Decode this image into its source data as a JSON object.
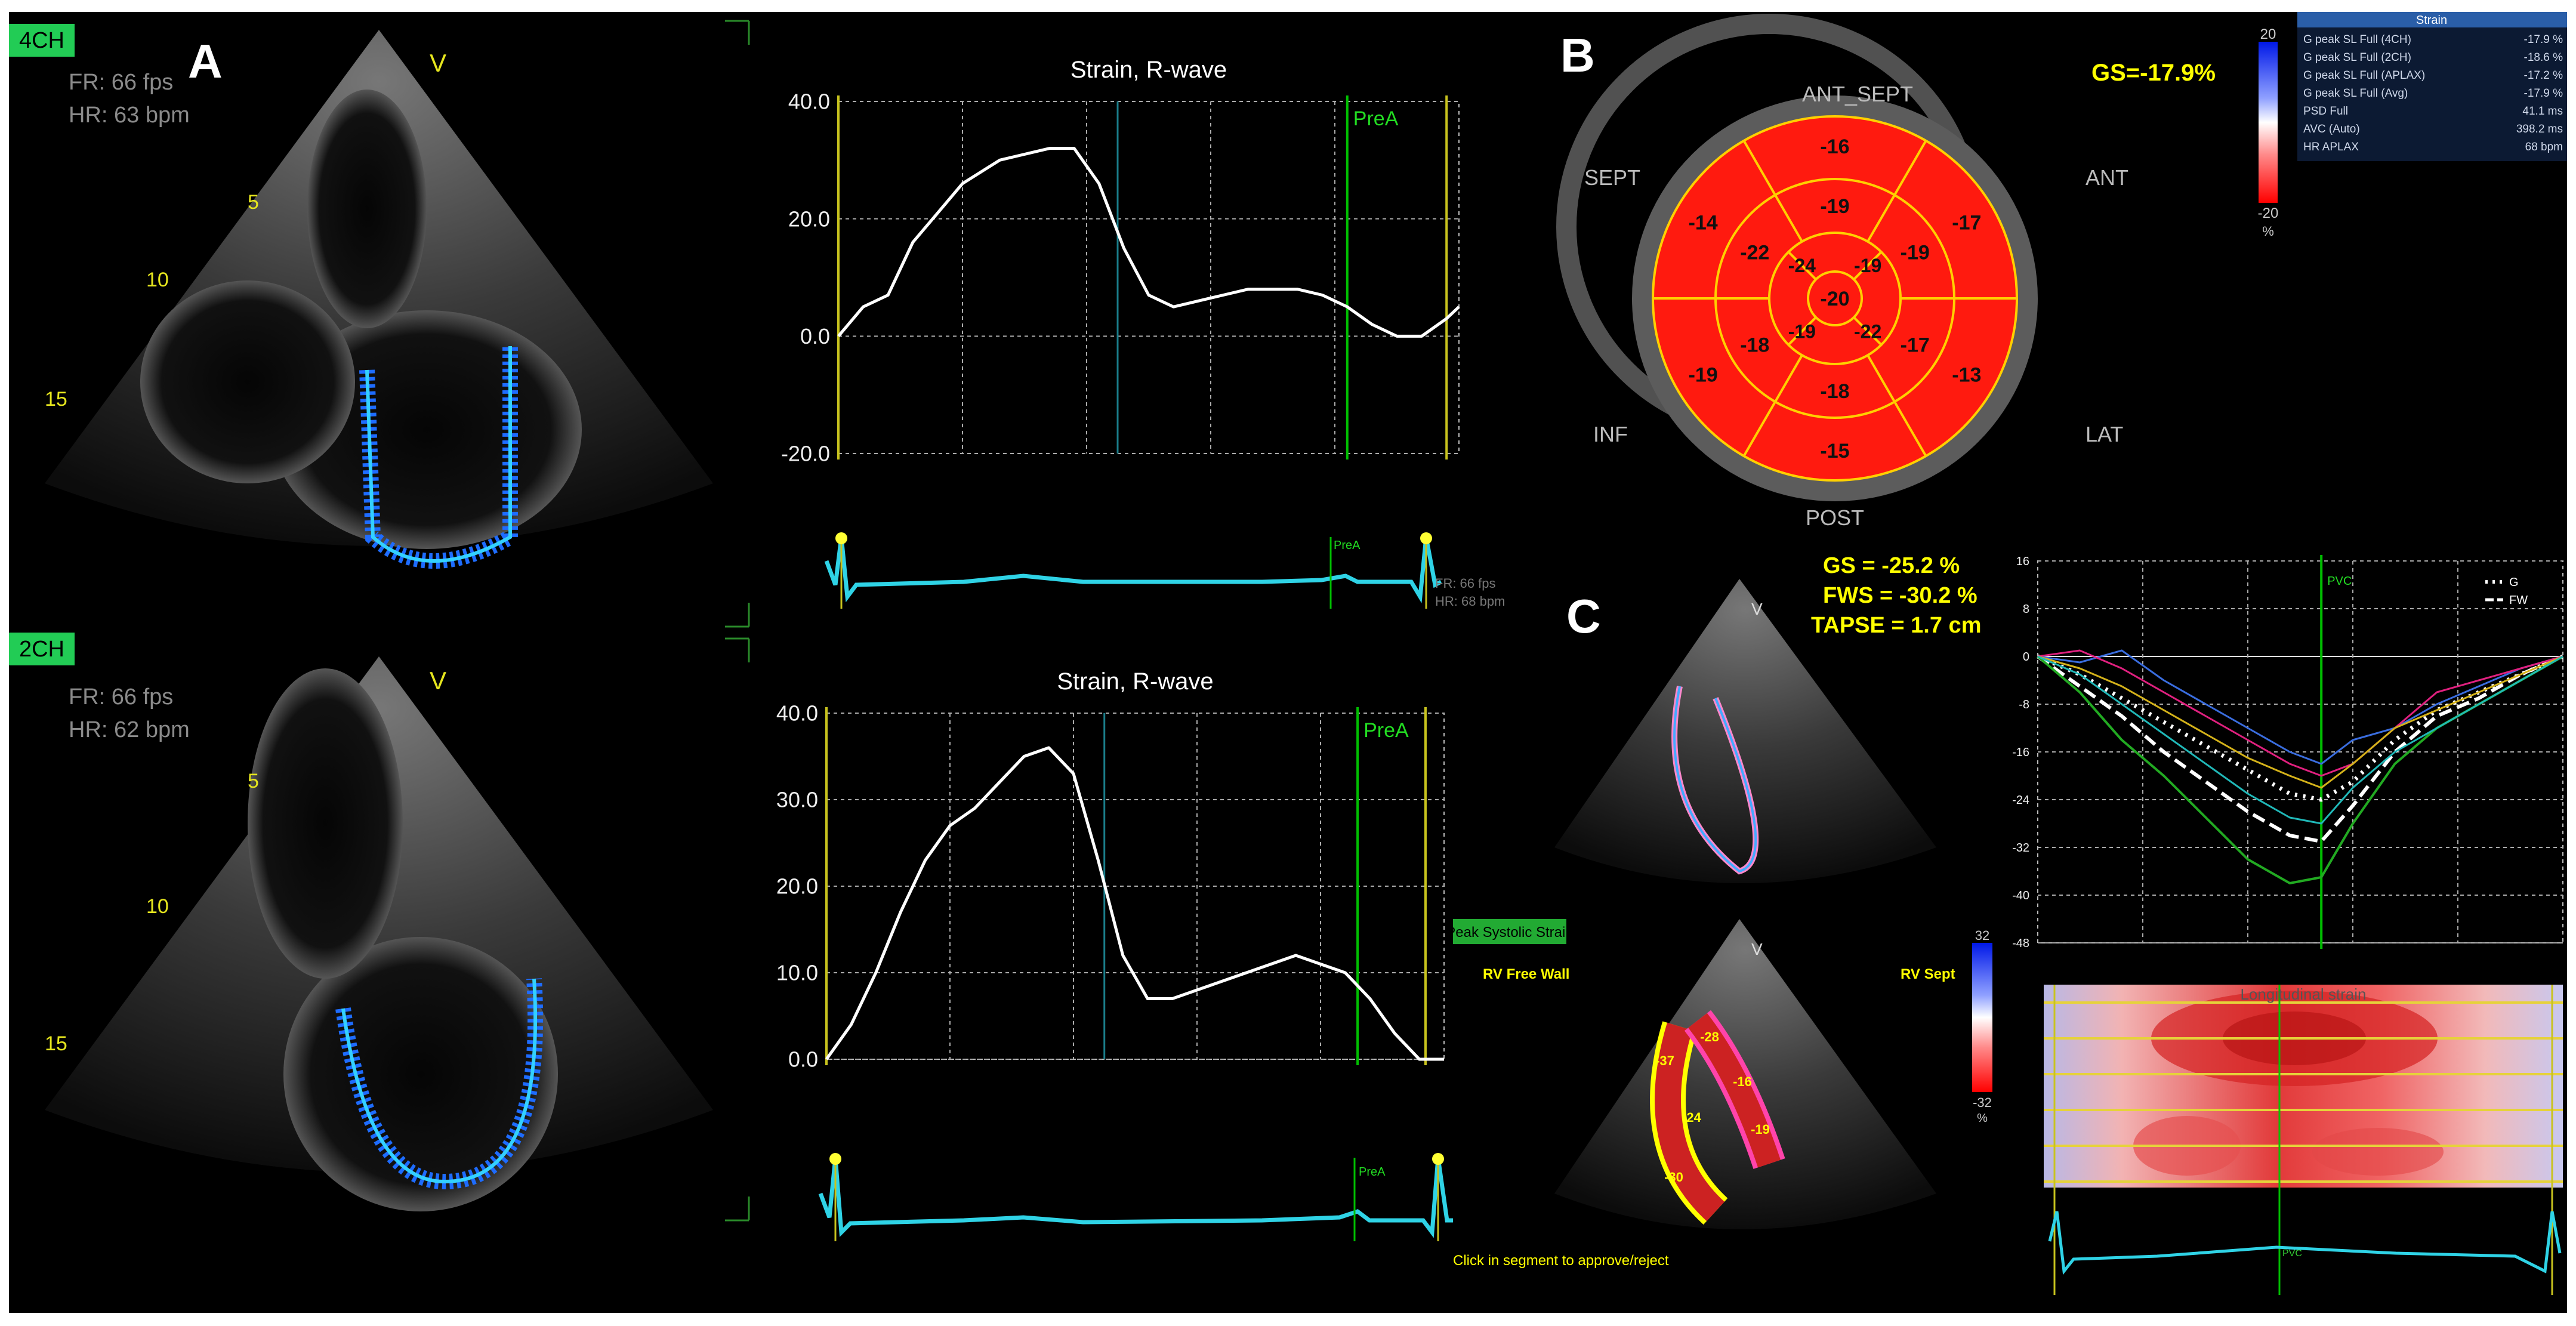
{
  "panel_letters": {
    "a": "A",
    "b": "B",
    "c": "C"
  },
  "echo_4ch": {
    "view_tag": "4CH",
    "fr": "FR: 66 fps",
    "hr": "HR: 63 bpm",
    "marker": "V",
    "depth": [
      "5",
      "10",
      "15"
    ]
  },
  "echo_2ch": {
    "view_tag": "2CH",
    "fr": "FR: 66 fps",
    "hr": "HR: 62 bpm",
    "marker": "V",
    "depth": [
      "5",
      "10",
      "15"
    ]
  },
  "ecg_mini_text": {
    "fr": "FR: 66 fps",
    "hr": "HR: 68 bpm"
  },
  "peak_systolic_label": "Peak Systolic Strain",
  "colors": {
    "curve": "#ffffff",
    "axis": "#c8c31e",
    "marker": "#00c000",
    "ecg": "#2fd3e6",
    "bullseye": "#ff1a0f",
    "yellow": "#ffff00"
  },
  "chart_data": [
    {
      "type": "line",
      "title": "Strain, R-wave",
      "ylim": [
        -20,
        40
      ],
      "yticks": [
        "40.0",
        "20.0",
        "0.0",
        "-20.0"
      ],
      "marker_label": "PreA",
      "x": [
        0,
        4,
        8,
        12,
        16,
        20,
        26,
        30,
        34,
        38,
        42,
        46,
        50,
        54,
        58,
        62,
        66,
        70,
        74,
        78,
        82,
        86,
        90,
        94,
        98,
        100
      ],
      "y": [
        0,
        5,
        7,
        16,
        21,
        26,
        30,
        31,
        32,
        32,
        26,
        15,
        7,
        5,
        6,
        7,
        8,
        8,
        8,
        7,
        5,
        2,
        0,
        0,
        3,
        5
      ]
    },
    {
      "type": "line",
      "title": "Strain, R-wave",
      "ylim": [
        0,
        40
      ],
      "yticks": [
        "40.0",
        "30.0",
        "20.0",
        "10.0",
        "0.0"
      ],
      "marker_label": "PreA",
      "x": [
        0,
        4,
        8,
        12,
        16,
        20,
        24,
        28,
        32,
        36,
        40,
        44,
        48,
        52,
        56,
        60,
        64,
        68,
        72,
        76,
        80,
        84,
        88,
        92,
        96,
        100
      ],
      "y": [
        0,
        4,
        10,
        17,
        23,
        27,
        29,
        32,
        35,
        36,
        33,
        23,
        12,
        7,
        7,
        8,
        9,
        10,
        11,
        12,
        11,
        10,
        7,
        3,
        0,
        0
      ]
    },
    {
      "type": "line",
      "title": "",
      "ylim": [
        -48,
        16
      ],
      "yticks": [
        "16",
        "8",
        "0",
        "-8",
        "-16",
        "-24",
        "-32",
        "-40",
        "-48"
      ],
      "marker_label": "PVC",
      "legend": [
        "G",
        "FW"
      ],
      "x": [
        0,
        8,
        16,
        24,
        32,
        40,
        48,
        54,
        60,
        68,
        76,
        84,
        92,
        100
      ],
      "series": [
        {
          "name": "G",
          "values": [
            0,
            -3,
            -7,
            -11,
            -15,
            -19,
            -23,
            -24,
            -21,
            -14,
            -9,
            -6,
            -3,
            0
          ]
        },
        {
          "name": "FW",
          "values": [
            0,
            -5,
            -10,
            -16,
            -21,
            -26,
            -30,
            -31,
            -25,
            -16,
            -10,
            -7,
            -3,
            0
          ]
        },
        {
          "name": "seg-green",
          "values": [
            0,
            -6,
            -14,
            -20,
            -27,
            -34,
            -38,
            -37,
            -28,
            -18,
            -12,
            -8,
            -4,
            0
          ]
        },
        {
          "name": "seg-blue",
          "values": [
            0,
            -1,
            1,
            -4,
            -8,
            -12,
            -16,
            -18,
            -14,
            -12,
            -8,
            -5,
            -2,
            0
          ]
        },
        {
          "name": "seg-magenta",
          "values": [
            0,
            1,
            -2,
            -6,
            -10,
            -14,
            -18,
            -20,
            -18,
            -12,
            -6,
            -4,
            -2,
            0
          ]
        },
        {
          "name": "seg-yellow",
          "values": [
            0,
            -2,
            -5,
            -9,
            -13,
            -17,
            -20,
            -22,
            -18,
            -12,
            -9,
            -6,
            -3,
            0
          ]
        },
        {
          "name": "seg-cyan",
          "values": [
            0,
            -3,
            -8,
            -13,
            -18,
            -23,
            -27,
            -28,
            -22,
            -16,
            -12,
            -8,
            -4,
            0
          ]
        }
      ]
    }
  ],
  "bullseye": {
    "gs_label": "GS=-17.9%",
    "directions": {
      "ant_sept": "ANT_SEPT",
      "sept": "SEPT",
      "ant": "ANT",
      "inf": "INF",
      "lat": "LAT",
      "post": "POST"
    },
    "segments": {
      "outer": [
        "-16",
        "-17",
        "-13",
        "-15",
        "-19",
        "-14"
      ],
      "mid": [
        "-19",
        "-19",
        "-17",
        "-18",
        "-18",
        "-22"
      ],
      "inner": [
        "-19",
        "-22",
        "-19",
        "-24"
      ],
      "apex": "-20"
    }
  },
  "colorbar_b": {
    "max": "20",
    "min": "-20",
    "unit": "%"
  },
  "strain_table": {
    "header": "Strain",
    "rows": [
      {
        "label": "G peak SL Full (4CH)",
        "value": "-17.9 %"
      },
      {
        "label": "G peak SL Full (2CH)",
        "value": "-18.6 %"
      },
      {
        "label": "G peak SL Full (APLAX)",
        "value": "-17.2 %"
      },
      {
        "label": "G peak SL Full (Avg)",
        "value": "-17.9 %"
      },
      {
        "label": "PSD Full",
        "value": "41.1 ms"
      },
      {
        "label": "AVC (Auto)",
        "value": "398.2 ms"
      },
      {
        "label": "HR APLAX",
        "value": "68 bpm"
      }
    ]
  },
  "rv_metrics": {
    "gs": "GS = -25.2 %",
    "fws": "FWS = -30.2 %",
    "tapse": "TAPSE = 1.7 cm"
  },
  "rv_labels": {
    "free_wall": "RV Free Wall",
    "sept": "RV Sept",
    "hint": "Click in segment to approve/reject",
    "rv_marker": "V",
    "segment_values": [
      "-37",
      "-28",
      "-24",
      "-16",
      "-19",
      "-30"
    ]
  },
  "colorbar_c": {
    "max": "32",
    "min": "-32",
    "unit": "%"
  },
  "heatmap": {
    "title": "Longitudinal strain",
    "marker": "PVC"
  }
}
